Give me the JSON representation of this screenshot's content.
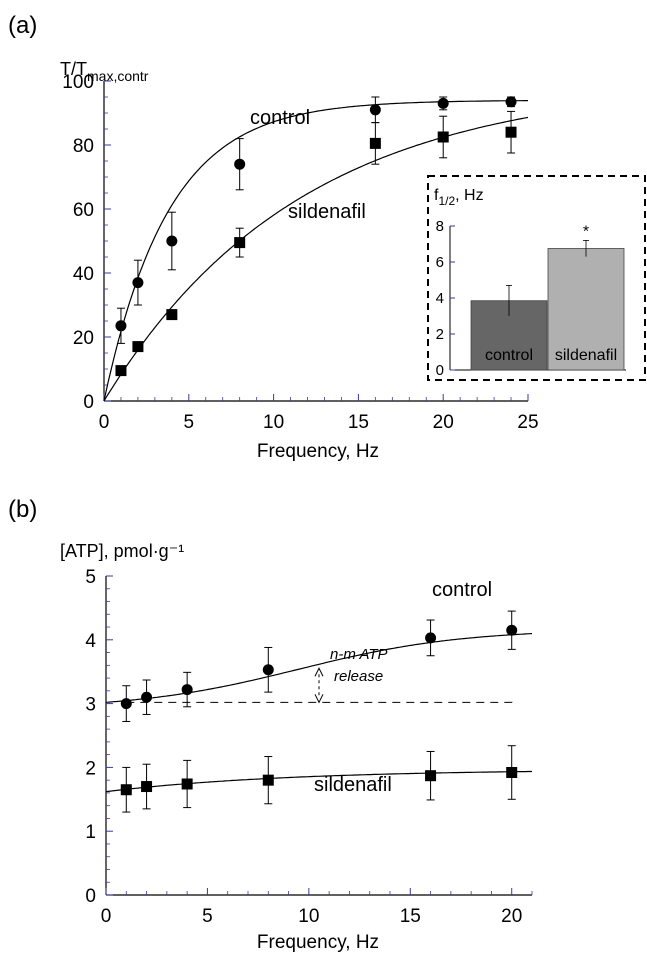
{
  "chart_data": [
    {
      "panel": "(a)",
      "type": "scatter",
      "ylabel_main": "T/T",
      "ylabel_sub": "max,contr",
      "xlabel": "Frequency, Hz",
      "xlim": [
        0,
        25
      ],
      "ylim": [
        0,
        100
      ],
      "xticks": [
        "0",
        "5",
        "10",
        "15",
        "20",
        "25"
      ],
      "yticks": [
        "0",
        "20",
        "40",
        "60",
        "80",
        "100"
      ],
      "series": [
        {
          "name": "control",
          "marker": "circle",
          "points": [
            {
              "x": 1,
              "y": 23.5,
              "err": 5.5
            },
            {
              "x": 2,
              "y": 37,
              "err": 7
            },
            {
              "x": 4,
              "y": 50,
              "err": 9
            },
            {
              "x": 8,
              "y": 74,
              "err": 8
            },
            {
              "x": 16,
              "y": 91,
              "err": 4
            },
            {
              "x": 20,
              "y": 93,
              "err": 2
            },
            {
              "x": 24,
              "y": 93.5,
              "err": 1.5
            }
          ],
          "fit": {
            "model": "exponential",
            "ymax": 94,
            "tau": 3.8
          }
        },
        {
          "name": "sildenafil",
          "marker": "square",
          "points": [
            {
              "x": 1,
              "y": 9.5,
              "err": 0
            },
            {
              "x": 2,
              "y": 17,
              "err": 0
            },
            {
              "x": 4,
              "y": 27,
              "err": 0
            },
            {
              "x": 8,
              "y": 49.5,
              "err": 4.5
            },
            {
              "x": 16,
              "y": 80.5,
              "err": 6.5
            },
            {
              "x": 20,
              "y": 82.5,
              "err": 6.5
            },
            {
              "x": 24,
              "y": 84,
              "err": 6.5
            }
          ],
          "fit": {
            "model": "exponential",
            "ymax": 100,
            "tau": 11.5
          }
        }
      ],
      "inset": {
        "type": "bar",
        "ylabel_main": "f",
        "ylabel_sub": "1/2",
        "ylabel_rest": ", Hz",
        "ylim": [
          0,
          8
        ],
        "yticks": [
          "0",
          "2",
          "4",
          "6",
          "8"
        ],
        "bars": [
          {
            "label": "control",
            "value": 3.85,
            "err": 0.85,
            "color": "#666666"
          },
          {
            "label": "sildenafil",
            "value": 6.75,
            "err": 0.45,
            "color": "#b0b0b0"
          }
        ],
        "annotation": "*"
      }
    },
    {
      "panel": "(b)",
      "type": "scatter",
      "ylabel": "[ATP], pmol·g⁻¹",
      "xlabel": "Frequency, Hz",
      "xlim": [
        0,
        21
      ],
      "ylim": [
        0,
        5
      ],
      "xticks": [
        "0",
        "5",
        "10",
        "15",
        "20"
      ],
      "yticks": [
        "0",
        "1",
        "2",
        "3",
        "4",
        "5"
      ],
      "series": [
        {
          "name": "control",
          "marker": "circle",
          "points": [
            {
              "x": 1,
              "y": 3.0,
              "err": 0.28
            },
            {
              "x": 2,
              "y": 3.1,
              "err": 0.27
            },
            {
              "x": 4,
              "y": 3.22,
              "err": 0.27
            },
            {
              "x": 8,
              "y": 3.53,
              "err": 0.35
            },
            {
              "x": 16,
              "y": 4.03,
              "err": 0.28
            },
            {
              "x": 20,
              "y": 4.15,
              "err": 0.3
            }
          ],
          "fit": {
            "model": "sigmoid",
            "base": 3.02,
            "amp": 1.25,
            "mid": 9.5,
            "width": 4.0
          }
        },
        {
          "name": "sildenafil",
          "marker": "square",
          "points": [
            {
              "x": 1,
              "y": 1.65,
              "err": 0.35
            },
            {
              "x": 2,
              "y": 1.7,
              "err": 0.35
            },
            {
              "x": 4,
              "y": 1.74,
              "err": 0.37
            },
            {
              "x": 8,
              "y": 1.8,
              "err": 0.37
            },
            {
              "x": 16,
              "y": 1.87,
              "err": 0.38
            },
            {
              "x": 20,
              "y": 1.92,
              "err": 0.42
            }
          ],
          "fit": {
            "model": "saturating",
            "start": 1.62,
            "amp": 0.35,
            "tau": 9
          }
        }
      ],
      "baseline": 3.02,
      "annotation_lines": [
        "n-m ATP",
        "release"
      ],
      "arrow_x": 10.5
    }
  ]
}
